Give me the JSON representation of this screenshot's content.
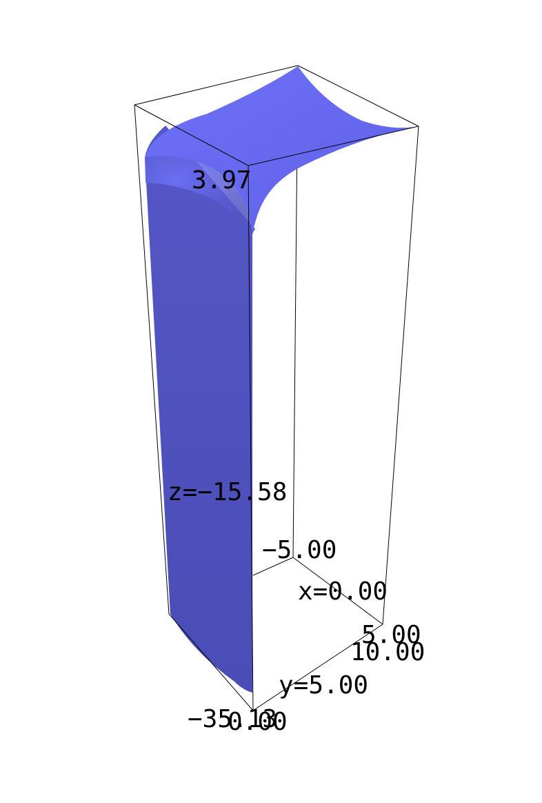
{
  "chart_data": {
    "type": "surface3d",
    "title": "",
    "surface_color": "#6b6ef5",
    "box_color": "#000000",
    "labels": {
      "z_max": "3.97",
      "z_mid": "z=−15.58",
      "z_min": "−35.13",
      "x_min": "−5.00",
      "x_mid": "x=0.00",
      "x_max": "5.00",
      "y_min": "0.00",
      "y_mid": "y=5.00",
      "y_max": "10.00"
    },
    "x_range": [
      -5,
      5
    ],
    "y_range": [
      0,
      10
    ],
    "z_range": [
      -35.13,
      3.97
    ]
  }
}
